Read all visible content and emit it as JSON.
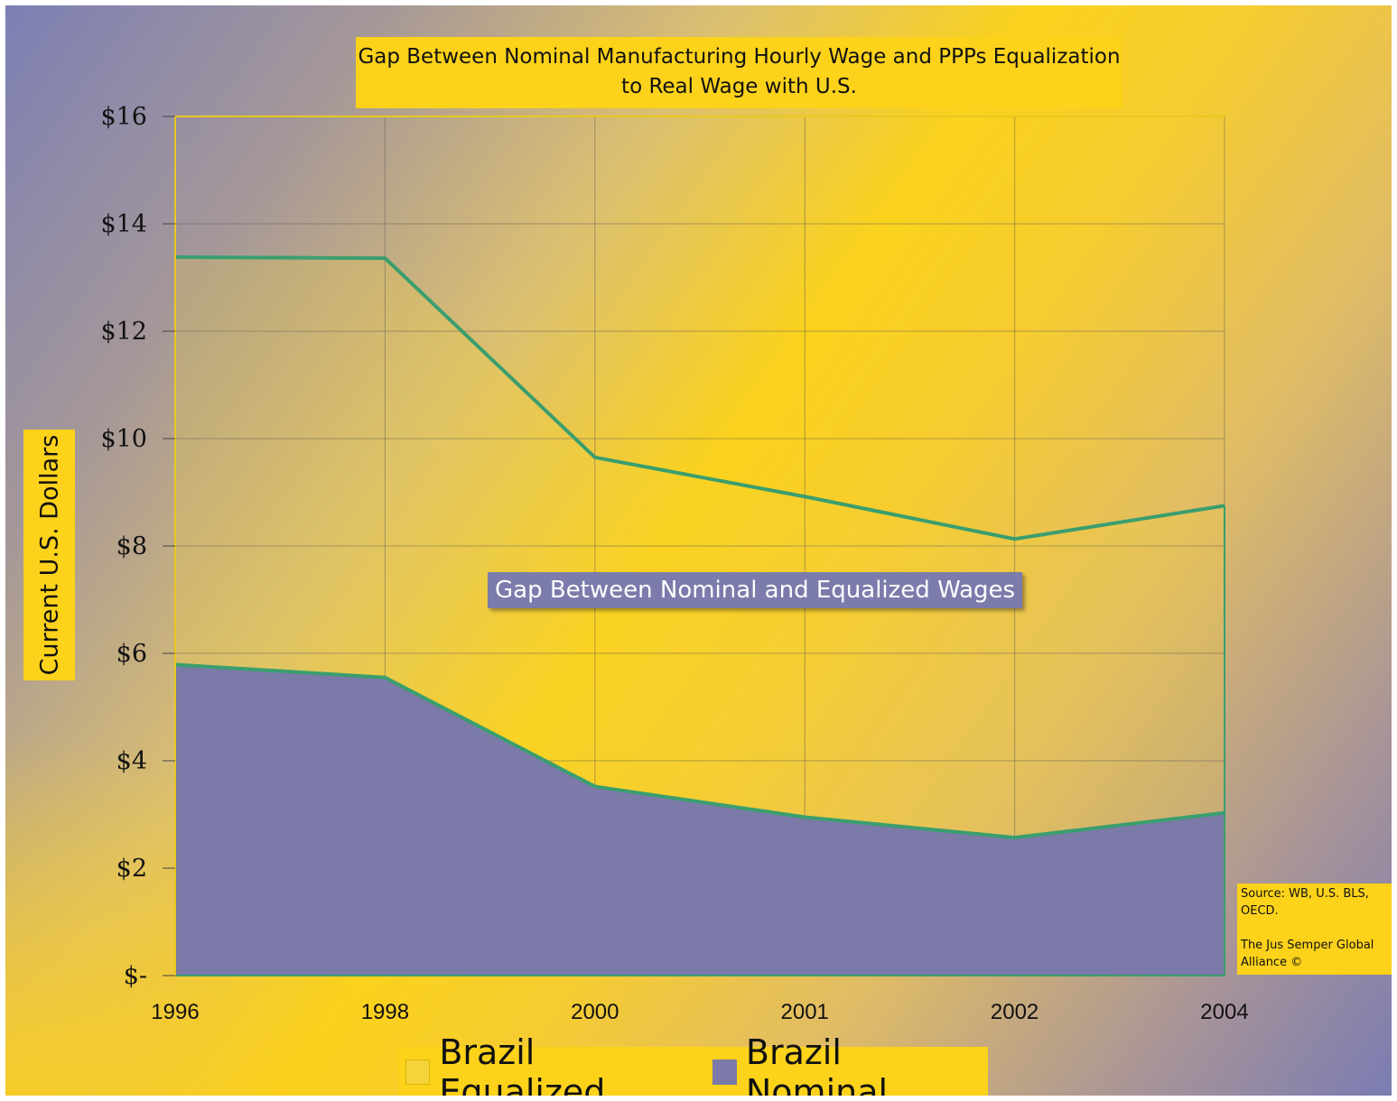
{
  "chart_data": {
    "type": "area",
    "title": "Gap Between Nominal Manufacturing Hourly Wage and PPPs Equalization to Real Wage with U.S.",
    "y_label": "Current U.S. Dollars",
    "annotation": "Gap Between Nominal and Equalized Wages",
    "source": [
      "Source: WB, U.S. BLS, OECD.",
      "The Jus Semper Global Alliance ©"
    ],
    "categories": [
      "1996",
      "1998",
      "2000",
      "2001",
      "2002",
      "2004"
    ],
    "series": [
      {
        "name": "Brazil Equalized",
        "color": "#f4d43a",
        "values": [
          13.38,
          13.36,
          9.65,
          8.92,
          8.13,
          8.75
        ]
      },
      {
        "name": "Brazil Nominal",
        "color": "#7b7aa8",
        "values": [
          5.79,
          5.55,
          3.52,
          2.95,
          2.57,
          3.03
        ]
      }
    ],
    "line_color": "#3a9e6e",
    "ylim": [
      0,
      16
    ],
    "yticks": [
      {
        "value": 0,
        "label": "$-"
      },
      {
        "value": 2,
        "label": "$2"
      },
      {
        "value": 4,
        "label": "$4"
      },
      {
        "value": 6,
        "label": "$6"
      },
      {
        "value": 8,
        "label": "$8"
      },
      {
        "value": 10,
        "label": "$10"
      },
      {
        "value": 12,
        "label": "$12"
      },
      {
        "value": 14,
        "label": "$14"
      },
      {
        "value": 16,
        "label": "$16"
      }
    ],
    "grid": true
  }
}
